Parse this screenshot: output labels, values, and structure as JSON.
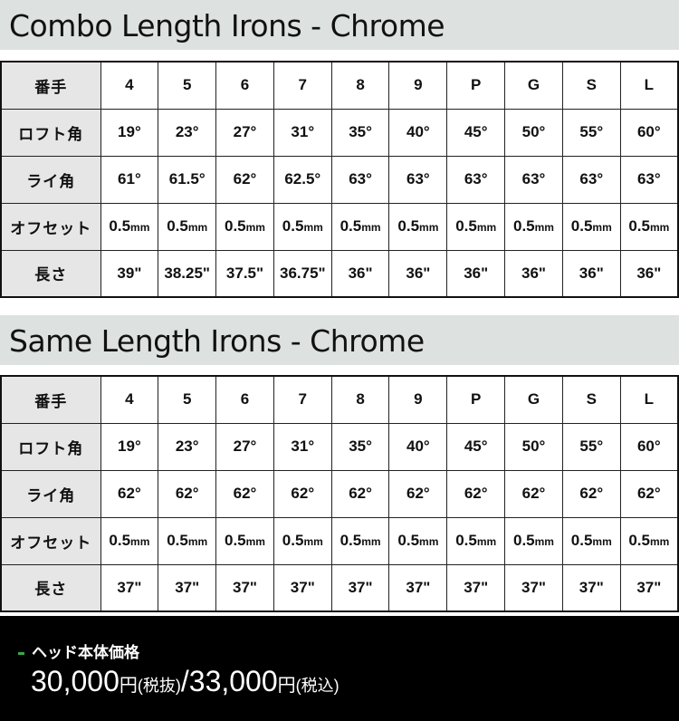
{
  "tables": [
    {
      "title": "Combo Length Irons - Chrome",
      "rows": [
        {
          "label": "番手",
          "cells": [
            "4",
            "5",
            "6",
            "7",
            "8",
            "9",
            "P",
            "G",
            "S",
            "L"
          ]
        },
        {
          "label": "ロフト角",
          "cells": [
            "19°",
            "23°",
            "27°",
            "31°",
            "35°",
            "40°",
            "45°",
            "50°",
            "55°",
            "60°"
          ]
        },
        {
          "label": "ライ角",
          "cells": [
            "61°",
            "61.5°",
            "62°",
            "62.5°",
            "63°",
            "63°",
            "63°",
            "63°",
            "63°",
            "63°"
          ]
        },
        {
          "label": "オフセット",
          "cells": [
            "0.5mm",
            "0.5mm",
            "0.5mm",
            "0.5mm",
            "0.5mm",
            "0.5mm",
            "0.5mm",
            "0.5mm",
            "0.5mm",
            "0.5mm"
          ]
        },
        {
          "label": "長さ",
          "cells": [
            "39\"",
            "38.25\"",
            "37.5\"",
            "36.75\"",
            "36\"",
            "36\"",
            "36\"",
            "36\"",
            "36\"",
            "36\""
          ]
        }
      ]
    },
    {
      "title": "Same Length Irons - Chrome",
      "rows": [
        {
          "label": "番手",
          "cells": [
            "4",
            "5",
            "6",
            "7",
            "8",
            "9",
            "P",
            "G",
            "S",
            "L"
          ]
        },
        {
          "label": "ロフト角",
          "cells": [
            "19°",
            "23°",
            "27°",
            "31°",
            "35°",
            "40°",
            "45°",
            "50°",
            "55°",
            "60°"
          ]
        },
        {
          "label": "ライ角",
          "cells": [
            "62°",
            "62°",
            "62°",
            "62°",
            "62°",
            "62°",
            "62°",
            "62°",
            "62°",
            "62°"
          ]
        },
        {
          "label": "オフセット",
          "cells": [
            "0.5mm",
            "0.5mm",
            "0.5mm",
            "0.5mm",
            "0.5mm",
            "0.5mm",
            "0.5mm",
            "0.5mm",
            "0.5mm",
            "0.5mm"
          ]
        },
        {
          "label": "長さ",
          "cells": [
            "37\"",
            "37\"",
            "37\"",
            "37\"",
            "37\"",
            "37\"",
            "37\"",
            "37\"",
            "37\"",
            "37\""
          ]
        }
      ]
    }
  ],
  "footer": {
    "title": "ヘッド本体価格",
    "price_ex": "30,000",
    "yen": "円",
    "tax_ex": "(税抜)",
    "sep": "/",
    "price_in": "33,000",
    "yen2": "円",
    "tax_in": "(税込)",
    "accent": "#3aa84a"
  }
}
